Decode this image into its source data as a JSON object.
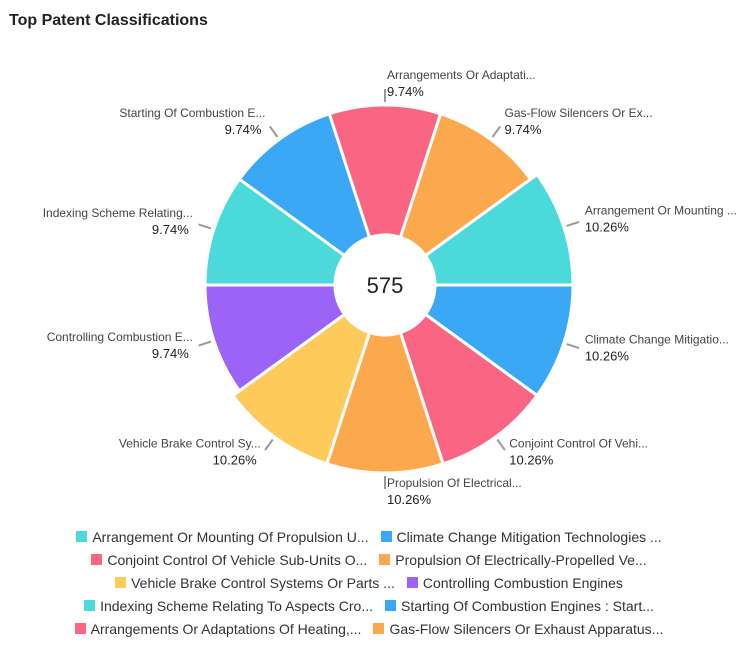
{
  "header": {
    "title": "Top Patent Classifications"
  },
  "chart_data": {
    "type": "pie",
    "variant": "donut-rose",
    "title": "Top Patent Classifications",
    "center_label": "575",
    "slices": [
      {
        "label": "Starting Of Combustion E...",
        "legend": "Starting Of Combustion Engines : Start...",
        "percent": 9.74,
        "color": "#3aa8f5"
      },
      {
        "label": "Arrangements Or Adaptati...",
        "legend": "Arrangements Or Adaptations Of Heating,...",
        "percent": 9.74,
        "color": "#fb6584"
      },
      {
        "label": "Gas-Flow Silencers Or Ex...",
        "legend": "Gas-Flow Silencers Or Exhaust Apparatus...",
        "percent": 9.74,
        "color": "#fca94d"
      },
      {
        "label": "Arrangement Or Mounting ...",
        "legend": "Arrangement Or Mounting Of Propulsion U...",
        "percent": 10.26,
        "color": "#4cd9d9"
      },
      {
        "label": "Climate Change Mitigatio...",
        "legend": "Climate Change Mitigation Technologies ...",
        "percent": 10.26,
        "color": "#3aa8f5"
      },
      {
        "label": "Conjoint Control Of Vehi...",
        "legend": "Conjoint Control Of Vehicle Sub-Units O...",
        "percent": 10.26,
        "color": "#fb6584"
      },
      {
        "label": "Propulsion Of Electrical...",
        "legend": "Propulsion Of Electrically-Propelled Ve...",
        "percent": 10.26,
        "color": "#fca94d"
      },
      {
        "label": "Vehicle Brake Control Sy...",
        "legend": "Vehicle Brake Control Systems Or Parts ...",
        "percent": 10.26,
        "color": "#fecb5a"
      },
      {
        "label": "Controlling Combustion E...",
        "legend": "Controlling Combustion Engines",
        "percent": 9.74,
        "color": "#9b64f6"
      },
      {
        "label": "Indexing Scheme Relating...",
        "legend": "Indexing Scheme Relating To Aspects Cro...",
        "percent": 9.74,
        "color": "#4cd9d9"
      }
    ],
    "legend_order": [
      3,
      4,
      5,
      6,
      7,
      8,
      9,
      0,
      1,
      2
    ],
    "legend_placement": "bottom"
  }
}
